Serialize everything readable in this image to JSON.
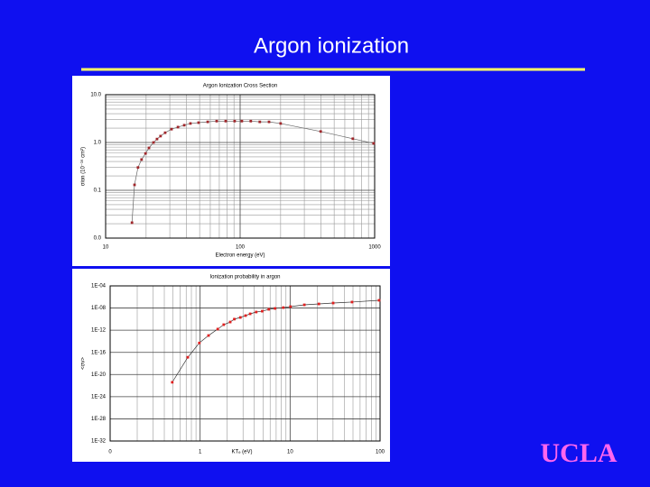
{
  "title": "Argon ionization",
  "logo": "UCLA",
  "chart_data": [
    {
      "type": "line",
      "title": "Argon Ionization Cross Section",
      "x_label": "Electron energy (eV)",
      "y_label": "σion (10⁻¹⁶ cm²)",
      "log_x": true,
      "log_y": true,
      "grid": true,
      "minor_grid": true,
      "xlim": [
        10,
        1000
      ],
      "ylim": [
        0.01,
        10
      ],
      "xticks": [
        10,
        100,
        1000
      ],
      "yticks": [
        {
          "value": 0.01,
          "label": "0.0"
        },
        0.1,
        {
          "value": 1,
          "label": "1.0"
        },
        {
          "value": 10,
          "label": "10.0"
        }
      ],
      "series": [
        {
          "color": "#a0262a",
          "line_color": "#666666",
          "x": [
            15.7,
            16.4,
            17.4,
            18.5,
            19.8,
            21,
            22.7,
            24.1,
            25.6,
            27.7,
            30.9,
            34.5,
            38.4,
            42.7,
            49.1,
            57.4,
            66.9,
            78.1,
            91,
            103,
            120,
            140,
            164,
            200,
            397,
            688,
            982
          ],
          "values": [
            0.021,
            0.13,
            0.3,
            0.44,
            0.59,
            0.77,
            1.0,
            1.18,
            1.36,
            1.6,
            1.9,
            2.1,
            2.3,
            2.5,
            2.6,
            2.7,
            2.8,
            2.8,
            2.8,
            2.8,
            2.8,
            2.7,
            2.7,
            2.5,
            1.7,
            1.2,
            0.96
          ]
        }
      ]
    },
    {
      "type": "line",
      "title": "Ionization probability in argon",
      "x_label": "KTₑ (eV)",
      "y_label": "<σv>",
      "log_x": true,
      "log_y": true,
      "grid": true,
      "minor_grid": true,
      "xlim": [
        0.1,
        100
      ],
      "ylim": [
        1e-32,
        0.0001
      ],
      "xticks": [
        {
          "value": 0.1,
          "label": "0"
        },
        1,
        10,
        100
      ],
      "yticks": [
        {
          "value": 0.0001,
          "label": "1E-04"
        },
        {
          "value": 1e-08,
          "label": "1E-08"
        },
        {
          "value": 1e-12,
          "label": "1E-12"
        },
        {
          "value": 1e-16,
          "label": "1E-16"
        },
        {
          "value": 1e-20,
          "label": "1E-20"
        },
        {
          "value": 1e-24,
          "label": "1E-24"
        },
        {
          "value": 1e-28,
          "label": "1E-28"
        },
        {
          "value": 1e-32,
          "label": "1E-32"
        }
      ],
      "series": [
        {
          "color": "#e02020",
          "line_color": "#333333",
          "x": [
            0.49,
            0.73,
            0.98,
            1.24,
            1.57,
            1.83,
            2.16,
            2.4,
            2.8,
            3.2,
            3.6,
            4.2,
            4.9,
            5.8,
            6.8,
            8.4,
            10.1,
            14.4,
            20.9,
            30.1,
            48.8,
            97.5
          ],
          "values": [
            4e-22,
            1.3e-17,
            5e-15,
            1.1e-13,
            1.6e-12,
            1e-11,
            3e-11,
            1e-10,
            2e-10,
            4.3e-10,
            9e-10,
            1.9e-09,
            2.7e-09,
            5.9e-09,
            8.5e-09,
            1.2e-08,
            1.8e-08,
            3.8e-08,
            5.5e-08,
            8e-08,
            1.2e-07,
            2.5e-07
          ]
        }
      ]
    }
  ]
}
